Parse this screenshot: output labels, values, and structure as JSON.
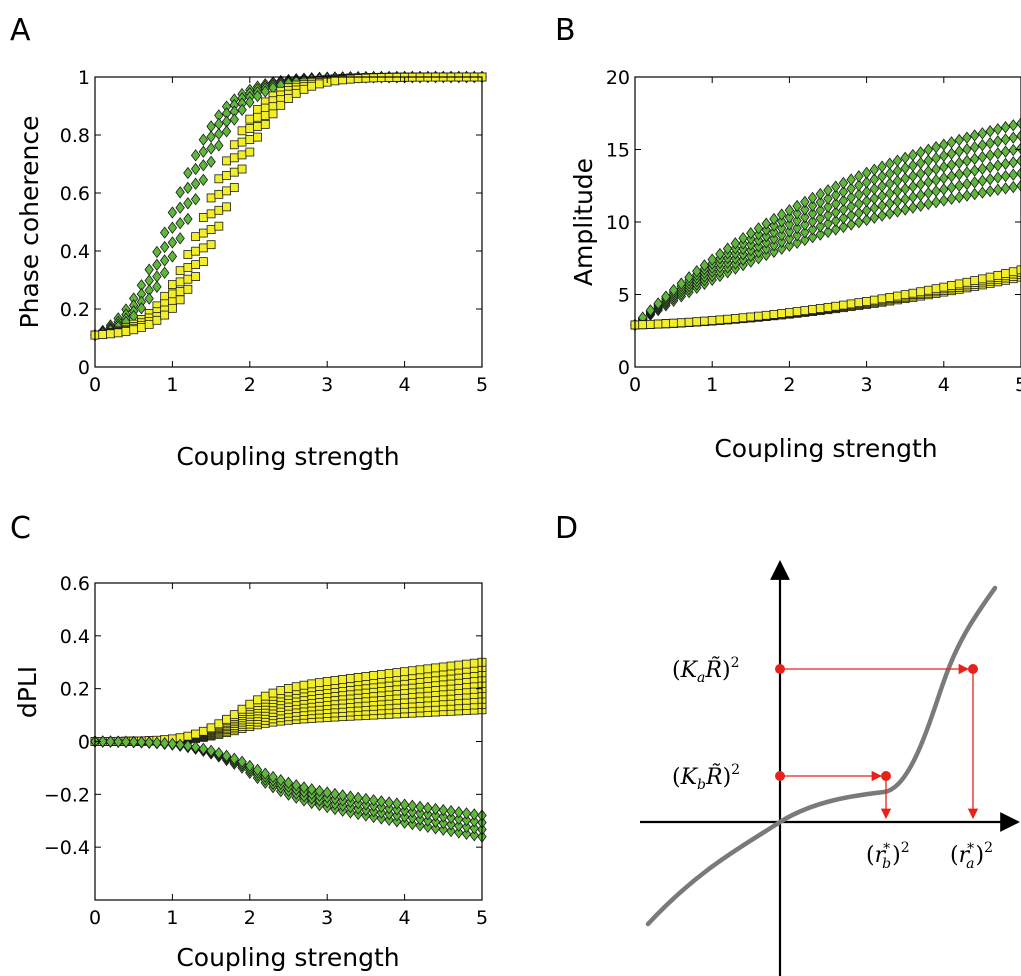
{
  "panels": {
    "A": {
      "letter": "A"
    },
    "B": {
      "letter": "B"
    },
    "C": {
      "letter": "C"
    },
    "D": {
      "letter": "D"
    }
  },
  "colors": {
    "green": "#5fb83c",
    "yellow": "#f2ef2a",
    "red": "#e8221a",
    "curve": "#7a7a7a"
  },
  "chart_data": [
    {
      "panel": "A",
      "type": "scatter",
      "xlabel": "Coupling strength",
      "ylabel": "Phase coherence",
      "xlim": [
        0,
        5
      ],
      "ylim": [
        0,
        1
      ],
      "xticks": [
        0,
        1,
        2,
        3,
        4,
        5
      ],
      "yticks": [
        0,
        0.2,
        0.4,
        0.6,
        0.8,
        1
      ],
      "ytick_labels": [
        "0",
        "0.2",
        "0.4",
        "0.6",
        "0.8",
        "1"
      ],
      "grid": false,
      "series": [
        {
          "marker": "diamond",
          "color": "#5fb83c",
          "count": 4,
          "model": "sigmoid",
          "y0": 0.11,
          "ymax": 1.0,
          "mid_range": [
            1.0,
            1.25
          ],
          "steepness": 3.0
        },
        {
          "marker": "square",
          "color": "#f2ef2a",
          "count": 4,
          "model": "sigmoid",
          "y0": 0.11,
          "ymax": 1.0,
          "mid_range": [
            1.45,
            1.7
          ],
          "steepness": 3.0
        }
      ],
      "x_step": 0.1
    },
    {
      "panel": "B",
      "type": "scatter",
      "xlabel": "Coupling strength",
      "ylabel": "Amplitude",
      "xlim": [
        0,
        5
      ],
      "ylim": [
        0,
        20
      ],
      "xticks": [
        0,
        1,
        2,
        3,
        4,
        5
      ],
      "yticks": [
        0,
        5,
        10,
        15,
        20
      ],
      "grid": false,
      "series": [
        {
          "marker": "diamond",
          "color": "#5fb83c",
          "count": 6,
          "model": "saturating",
          "y0": 2.9,
          "y_end_range": [
            12.5,
            16.8
          ]
        },
        {
          "marker": "square",
          "color": "#f2ef2a",
          "count": 4,
          "model": "slow_rise",
          "y0": 2.9,
          "y_end_range": [
            6.2,
            6.7
          ]
        }
      ],
      "x_step": 0.1
    },
    {
      "panel": "C",
      "type": "scatter",
      "xlabel": "Coupling strength",
      "ylabel": "dPLI",
      "xlim": [
        0,
        5
      ],
      "ylim": [
        -0.6,
        0.6
      ],
      "xticks": [
        0,
        1,
        2,
        3,
        4,
        5
      ],
      "yticks": [
        -0.4,
        -0.2,
        0,
        0.2,
        0.4,
        0.6
      ],
      "ytick_labels": [
        "−0.4",
        "−0.2",
        "0",
        "0.2",
        "0.4",
        "0.6"
      ],
      "grid": false,
      "series": [
        {
          "marker": "square",
          "color": "#f2ef2a",
          "count": 10,
          "model": "diverge_up",
          "y_end_range": [
            0.12,
            0.3
          ]
        },
        {
          "marker": "diamond",
          "color": "#5fb83c",
          "count": 4,
          "model": "diverge_down",
          "y_end_range": [
            -0.36,
            -0.28
          ]
        }
      ],
      "x_step": 0.1
    },
    {
      "panel": "D",
      "type": "diagram",
      "labels": {
        "y_upper": "(KₐR̃)²",
        "y_lower": "(KᵦR̃)²",
        "x_left": "(rᵦ*)²",
        "x_right": "(rₐ*)²"
      },
      "label_parts": {
        "y_upper": {
          "open": "(",
          "K": "K",
          "sub": "a",
          "R": "R̃",
          "close": ")",
          "sup": "2"
        },
        "y_lower": {
          "open": "(",
          "K": "K",
          "sub": "b",
          "R": "R̃",
          "close": ")",
          "sup": "2"
        },
        "x_left": {
          "open": "(",
          "r": "r",
          "sub": "b",
          "star": "*",
          "close": ")",
          "sup": "2"
        },
        "x_right": {
          "open": "(",
          "r": "r",
          "sub": "a",
          "star": "*",
          "close": ")",
          "sup": "2"
        }
      }
    }
  ]
}
